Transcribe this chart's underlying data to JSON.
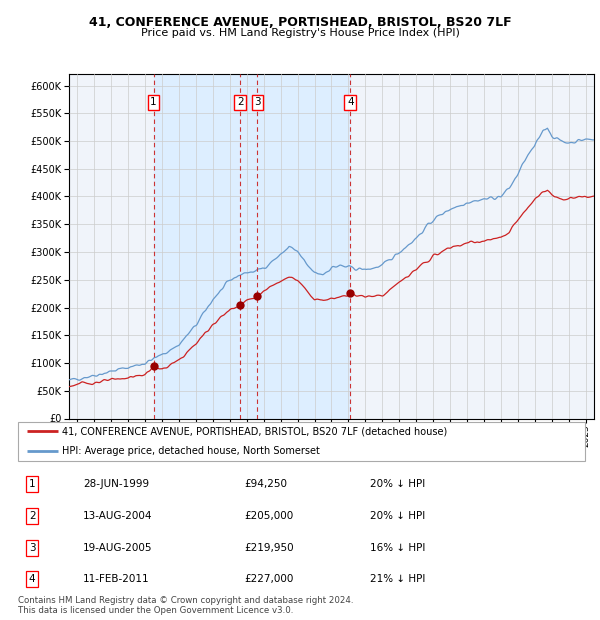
{
  "title1": "41, CONFERENCE AVENUE, PORTISHEAD, BRISTOL, BS20 7LF",
  "title2": "Price paid vs. HM Land Registry's House Price Index (HPI)",
  "legend_line1": "41, CONFERENCE AVENUE, PORTISHEAD, BRISTOL, BS20 7LF (detached house)",
  "legend_line2": "HPI: Average price, detached house, North Somerset",
  "footnote1": "Contains HM Land Registry data © Crown copyright and database right 2024.",
  "footnote2": "This data is licensed under the Open Government Licence v3.0.",
  "transactions": [
    {
      "label": "1",
      "price": 94250,
      "x": 1999.49
    },
    {
      "label": "2",
      "price": 205000,
      "x": 2004.62
    },
    {
      "label": "3",
      "price": 219950,
      "x": 2005.63
    },
    {
      "label": "4",
      "price": 227000,
      "x": 2011.11
    }
  ],
  "table_rows": [
    {
      "num": "1",
      "date_str": "28-JUN-1999",
      "price_str": "£94,250",
      "note": "20% ↓ HPI"
    },
    {
      "num": "2",
      "date_str": "13-AUG-2004",
      "price_str": "£205,000",
      "note": "20% ↓ HPI"
    },
    {
      "num": "3",
      "date_str": "19-AUG-2005",
      "price_str": "£219,950",
      "note": "16% ↓ HPI"
    },
    {
      "num": "4",
      "date_str": "11-FEB-2011",
      "price_str": "£227,000",
      "note": "21% ↓ HPI"
    }
  ],
  "hpi_color": "#6699cc",
  "price_color": "#cc2222",
  "marker_color": "#990000",
  "dashed_color": "#cc3333",
  "shade_color": "#ddeeff",
  "grid_color": "#cccccc",
  "bg_color": "#f0f4fa",
  "ylim": [
    0,
    620000
  ],
  "yticks": [
    0,
    50000,
    100000,
    150000,
    200000,
    250000,
    300000,
    350000,
    400000,
    450000,
    500000,
    550000,
    600000
  ],
  "xlim_start": 1994.5,
  "xlim_end": 2025.5,
  "hpi_anchors": [
    [
      1994.5,
      68000
    ],
    [
      1995.0,
      72000
    ],
    [
      1996.0,
      78000
    ],
    [
      1997.0,
      85000
    ],
    [
      1998.0,
      92000
    ],
    [
      1999.0,
      100000
    ],
    [
      2000.0,
      115000
    ],
    [
      2001.0,
      133000
    ],
    [
      2002.0,
      168000
    ],
    [
      2003.0,
      215000
    ],
    [
      2004.0,
      248000
    ],
    [
      2004.5,
      258000
    ],
    [
      2005.0,
      263000
    ],
    [
      2005.5,
      265000
    ],
    [
      2006.0,
      272000
    ],
    [
      2007.0,
      295000
    ],
    [
      2007.5,
      310000
    ],
    [
      2008.0,
      300000
    ],
    [
      2008.5,
      278000
    ],
    [
      2009.0,
      262000
    ],
    [
      2009.5,
      260000
    ],
    [
      2010.0,
      272000
    ],
    [
      2010.5,
      275000
    ],
    [
      2011.0,
      272000
    ],
    [
      2011.5,
      270000
    ],
    [
      2012.0,
      268000
    ],
    [
      2013.0,
      275000
    ],
    [
      2014.0,
      300000
    ],
    [
      2015.0,
      325000
    ],
    [
      2016.0,
      358000
    ],
    [
      2017.0,
      378000
    ],
    [
      2017.5,
      383000
    ],
    [
      2018.0,
      390000
    ],
    [
      2019.0,
      395000
    ],
    [
      2020.0,
      400000
    ],
    [
      2020.5,
      415000
    ],
    [
      2021.0,
      440000
    ],
    [
      2021.5,
      470000
    ],
    [
      2022.0,
      490000
    ],
    [
      2022.5,
      520000
    ],
    [
      2022.75,
      525000
    ],
    [
      2023.0,
      510000
    ],
    [
      2023.5,
      500000
    ],
    [
      2024.0,
      497000
    ],
    [
      2024.5,
      500000
    ],
    [
      2025.0,
      503000
    ],
    [
      2025.5,
      502000
    ]
  ],
  "price_anchors": [
    [
      1994.5,
      58000
    ],
    [
      1995.0,
      62000
    ],
    [
      1996.0,
      65000
    ],
    [
      1997.0,
      69000
    ],
    [
      1998.0,
      74000
    ],
    [
      1999.0,
      79000
    ],
    [
      1999.49,
      94250
    ],
    [
      2000.0,
      88000
    ],
    [
      2001.0,
      105000
    ],
    [
      2002.0,
      135000
    ],
    [
      2003.0,
      170000
    ],
    [
      2004.0,
      196000
    ],
    [
      2004.62,
      205000
    ],
    [
      2005.0,
      213000
    ],
    [
      2005.63,
      219950
    ],
    [
      2006.0,
      228000
    ],
    [
      2006.5,
      240000
    ],
    [
      2007.0,
      250000
    ],
    [
      2007.5,
      255000
    ],
    [
      2008.0,
      248000
    ],
    [
      2008.5,
      232000
    ],
    [
      2009.0,
      215000
    ],
    [
      2009.5,
      213000
    ],
    [
      2010.0,
      217000
    ],
    [
      2010.5,
      220000
    ],
    [
      2011.0,
      222000
    ],
    [
      2011.11,
      227000
    ],
    [
      2011.5,
      222000
    ],
    [
      2012.0,
      220000
    ],
    [
      2013.0,
      222000
    ],
    [
      2014.0,
      245000
    ],
    [
      2015.0,
      268000
    ],
    [
      2016.0,
      292000
    ],
    [
      2017.0,
      308000
    ],
    [
      2018.0,
      316000
    ],
    [
      2019.0,
      320000
    ],
    [
      2020.0,
      325000
    ],
    [
      2020.5,
      335000
    ],
    [
      2021.0,
      358000
    ],
    [
      2021.5,
      375000
    ],
    [
      2022.0,
      395000
    ],
    [
      2022.5,
      410000
    ],
    [
      2022.75,
      412000
    ],
    [
      2023.0,
      403000
    ],
    [
      2023.5,
      396000
    ],
    [
      2024.0,
      395000
    ],
    [
      2024.5,
      398000
    ],
    [
      2025.0,
      400000
    ],
    [
      2025.5,
      399000
    ]
  ]
}
